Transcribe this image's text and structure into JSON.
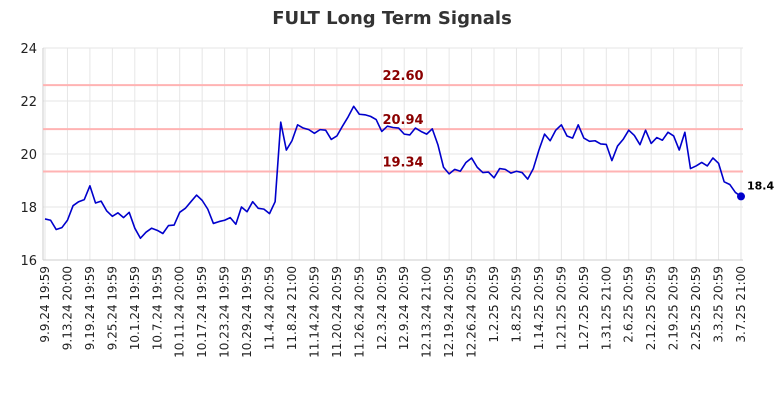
{
  "chart_data": {
    "type": "line",
    "title": "FULT Long Term Signals",
    "xlabel": "",
    "ylabel": "",
    "ylim": [
      16,
      24
    ],
    "yticks": [
      16,
      18,
      20,
      22,
      24
    ],
    "grid": true,
    "legend": "none",
    "colors": {
      "line": "#0000cc",
      "level": "#ffb3b3",
      "level_text": "#8b0000",
      "grid": "#e6e6e6"
    },
    "levels": [
      {
        "label": "22.60",
        "value": 22.6
      },
      {
        "label": "20.94",
        "value": 20.94
      },
      {
        "label": "19.34",
        "value": 19.34
      }
    ],
    "last_label": "18.4",
    "x_tick_labels": [
      "9.9.24 19:59",
      "9.13.24 20:00",
      "9.19.24 19:59",
      "9.25.24 19:59",
      "10.1.24 19:59",
      "10.7.24 19:59",
      "10.11.24 20:00",
      "10.17.24 19:59",
      "10.23.24 19:59",
      "10.29.24 19:59",
      "11.4.24 20:59",
      "11.8.24 21:00",
      "11.14.24 20:59",
      "11.20.24 20:59",
      "11.26.24 20:59",
      "12.3.24 20:59",
      "12.9.24 20:59",
      "12.13.24 21:00",
      "12.19.24 20:59",
      "12.26.24 20:59",
      "1.2.25 20:59",
      "1.8.25 20:59",
      "1.14.25 20:59",
      "1.21.25 20:59",
      "1.27.25 20:59",
      "1.31.25 21:00",
      "2.6.25 20:59",
      "2.12.25 20:59",
      "2.19.25 20:59",
      "2.25.25 20:59",
      "3.3.25 20:59",
      "3.7.25 21:00"
    ],
    "values": [
      17.55,
      17.5,
      17.15,
      17.22,
      17.5,
      18.05,
      18.2,
      18.28,
      18.8,
      18.15,
      18.22,
      17.85,
      17.65,
      17.78,
      17.6,
      17.8,
      17.2,
      16.82,
      17.05,
      17.2,
      17.12,
      17.0,
      17.3,
      17.32,
      17.8,
      17.95,
      18.2,
      18.45,
      18.25,
      17.92,
      17.38,
      17.45,
      17.5,
      17.6,
      17.35,
      18.0,
      17.82,
      18.2,
      17.95,
      17.92,
      17.75,
      18.2,
      21.2,
      20.15,
      20.5,
      21.1,
      20.98,
      20.92,
      20.78,
      20.92,
      20.9,
      20.55,
      20.68,
      21.05,
      21.4,
      21.8,
      21.5,
      21.48,
      21.42,
      21.3,
      20.85,
      21.05,
      21.0,
      20.98,
      20.75,
      20.72,
      20.98,
      20.85,
      20.75,
      20.95,
      20.35,
      19.5,
      19.25,
      19.42,
      19.35,
      19.68,
      19.85,
      19.5,
      19.3,
      19.32,
      19.1,
      19.45,
      19.42,
      19.28,
      19.35,
      19.3,
      19.05,
      19.45,
      20.15,
      20.75,
      20.5,
      20.9,
      21.1,
      20.68,
      20.6,
      21.1,
      20.6,
      20.48,
      20.5,
      20.38,
      20.36,
      19.75,
      20.3,
      20.55,
      20.9,
      20.7,
      20.35,
      20.9,
      20.4,
      20.62,
      20.52,
      20.82,
      20.68,
      20.15,
      20.82,
      19.45,
      19.55,
      19.68,
      19.55,
      19.85,
      19.65,
      18.95,
      18.85,
      18.55,
      18.4
    ]
  }
}
